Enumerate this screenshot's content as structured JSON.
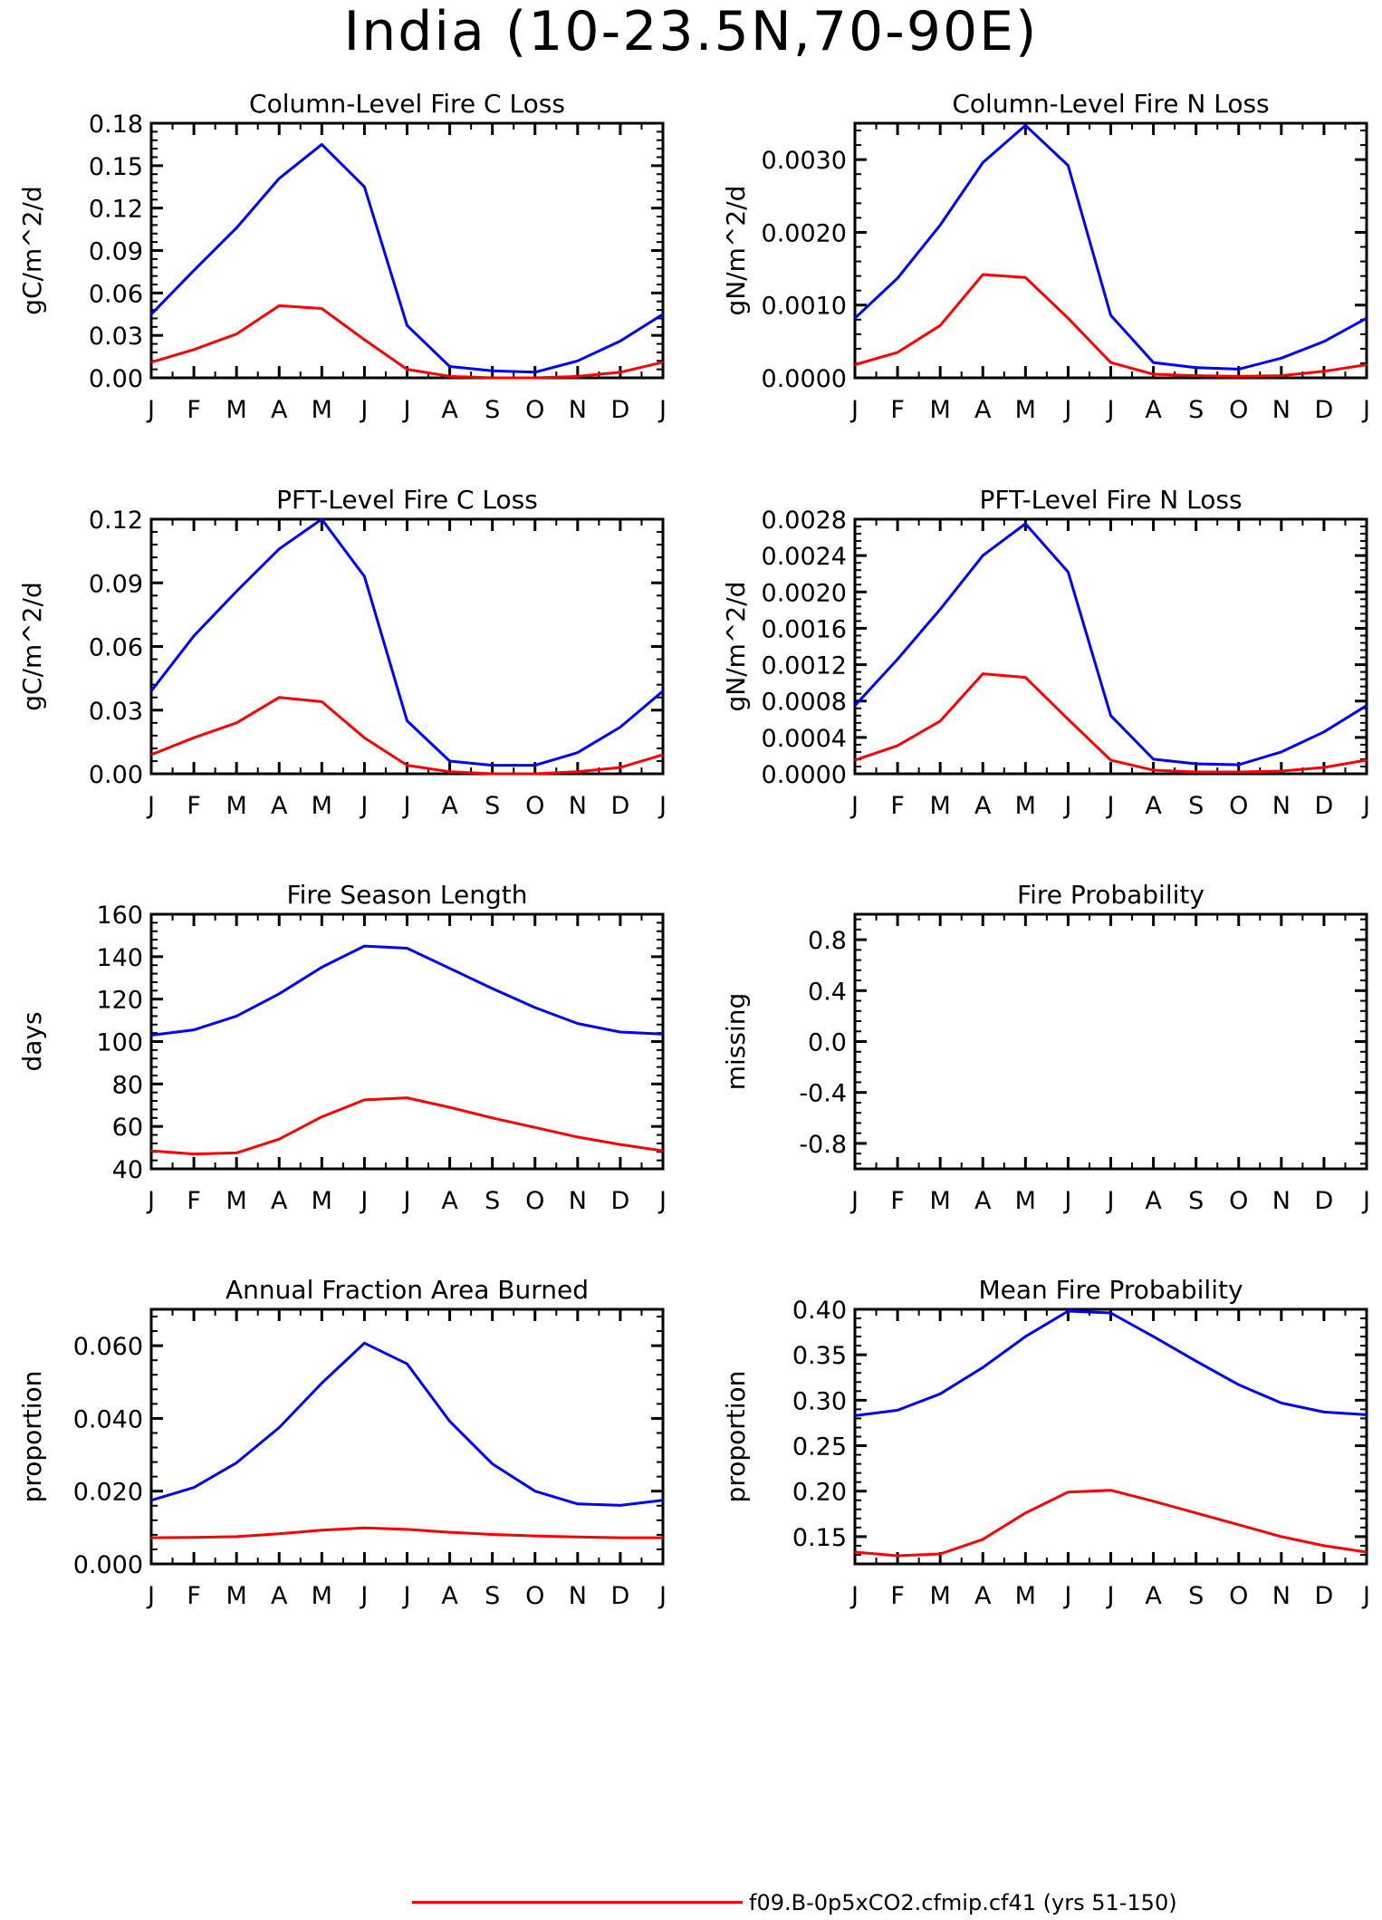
{
  "page_title": "India (10-23.5N,70-90E)",
  "colors": {
    "case_a": "#0000ff",
    "case_b": "#ff0000",
    "axis": "#000000"
  },
  "legend": {
    "visible_entries": [
      {
        "label": "f09.B-0p5xCO2.cfmip.cf41 (yrs 51-150)",
        "color": "#ff0000"
      }
    ]
  },
  "chart_data": [
    {
      "type": "line",
      "title": "Column-Level Fire C Loss",
      "ylabel": "gC/m^2/d",
      "categories": [
        "J",
        "F",
        "M",
        "A",
        "M",
        "J",
        "J",
        "A",
        "S",
        "O",
        "N",
        "D",
        "J"
      ],
      "ylim": [
        0,
        0.18
      ],
      "yticks": [
        0.0,
        0.03,
        0.06,
        0.09,
        0.12,
        0.15,
        0.18
      ],
      "ytick_labels": [
        "0.00",
        "0.03",
        "0.06",
        "0.09",
        "0.12",
        "0.15",
        "0.18"
      ],
      "series": [
        {
          "color": "#0000ff",
          "values": [
            0.045,
            0.076,
            0.106,
            0.141,
            0.165,
            0.135,
            0.037,
            0.008,
            0.005,
            0.004,
            0.012,
            0.026,
            0.045
          ]
        },
        {
          "color": "#ff0000",
          "values": [
            0.011,
            0.02,
            0.031,
            0.051,
            0.049,
            0.027,
            0.006,
            0.001,
            0.0,
            0.0,
            0.001,
            0.004,
            0.011
          ]
        }
      ]
    },
    {
      "type": "line",
      "title": "Column-Level Fire N Loss",
      "ylabel": "gN/m^2/d",
      "categories": [
        "J",
        "F",
        "M",
        "A",
        "M",
        "J",
        "J",
        "A",
        "S",
        "O",
        "N",
        "D",
        "J"
      ],
      "ylim": [
        0,
        0.0035
      ],
      "yticks": [
        0.0,
        0.001,
        0.002,
        0.003
      ],
      "ytick_labels": [
        "0.0000",
        "0.0010",
        "0.0020",
        "0.0030"
      ],
      "series": [
        {
          "color": "#0000ff",
          "values": [
            0.00082,
            0.00137,
            0.0021,
            0.00296,
            0.00347,
            0.00292,
            0.00086,
            0.00021,
            0.00014,
            0.00012,
            0.00027,
            0.0005,
            0.00082
          ]
        },
        {
          "color": "#ff0000",
          "values": [
            0.00018,
            0.00035,
            0.00072,
            0.00142,
            0.00138,
            0.00082,
            0.00021,
            5e-05,
            3e-05,
            2e-05,
            3e-05,
            9e-05,
            0.00018
          ]
        }
      ]
    },
    {
      "type": "line",
      "title": "PFT-Level Fire C Loss",
      "ylabel": "gC/m^2/d",
      "categories": [
        "J",
        "F",
        "M",
        "A",
        "M",
        "J",
        "J",
        "A",
        "S",
        "O",
        "N",
        "D",
        "J"
      ],
      "ylim": [
        0,
        0.12
      ],
      "yticks": [
        0.0,
        0.03,
        0.06,
        0.09,
        0.12
      ],
      "ytick_labels": [
        "0.00",
        "0.03",
        "0.06",
        "0.09",
        "0.12"
      ],
      "series": [
        {
          "color": "#0000ff",
          "values": [
            0.039,
            0.065,
            0.086,
            0.106,
            0.12,
            0.093,
            0.025,
            0.006,
            0.004,
            0.004,
            0.01,
            0.022,
            0.039
          ]
        },
        {
          "color": "#ff0000",
          "values": [
            0.009,
            0.017,
            0.024,
            0.036,
            0.034,
            0.017,
            0.004,
            0.001,
            0.0,
            0.0,
            0.001,
            0.003,
            0.009
          ]
        }
      ]
    },
    {
      "type": "line",
      "title": "PFT-Level Fire N Loss",
      "ylabel": "gN/m^2/d",
      "categories": [
        "J",
        "F",
        "M",
        "A",
        "M",
        "J",
        "J",
        "A",
        "S",
        "O",
        "N",
        "D",
        "J"
      ],
      "ylim": [
        0,
        0.0028
      ],
      "yticks": [
        0.0,
        0.0004,
        0.0008,
        0.0012,
        0.0016,
        0.002,
        0.0024,
        0.0028
      ],
      "ytick_labels": [
        "0.0000",
        "0.0004",
        "0.0008",
        "0.0012",
        "0.0016",
        "0.0020",
        "0.0024",
        "0.0028"
      ],
      "series": [
        {
          "color": "#0000ff",
          "values": [
            0.00075,
            0.00126,
            0.00181,
            0.0024,
            0.00275,
            0.00222,
            0.00064,
            0.00016,
            0.00011,
            0.0001,
            0.00024,
            0.00046,
            0.00075
          ]
        },
        {
          "color": "#ff0000",
          "values": [
            0.00015,
            0.00031,
            0.00058,
            0.0011,
            0.00106,
            0.0006,
            0.00015,
            4e-05,
            2e-05,
            2e-05,
            3e-05,
            7e-05,
            0.00015
          ]
        }
      ]
    },
    {
      "type": "line",
      "title": "Fire Season Length",
      "ylabel": "days",
      "categories": [
        "J",
        "F",
        "M",
        "A",
        "M",
        "J",
        "J",
        "A",
        "S",
        "O",
        "N",
        "D",
        "J"
      ],
      "ylim": [
        40,
        160
      ],
      "yticks": [
        40,
        60,
        80,
        100,
        120,
        140,
        160
      ],
      "ytick_labels": [
        "40",
        "60",
        "80",
        "100",
        "120",
        "140",
        "160"
      ],
      "series": [
        {
          "color": "#0000ff",
          "values": [
            103,
            105.5,
            112,
            122.5,
            135,
            145,
            144,
            134.5,
            125,
            116,
            108.5,
            104.5,
            103.5
          ]
        },
        {
          "color": "#ff0000",
          "values": [
            48.5,
            47,
            47.5,
            54,
            64.5,
            72.5,
            73.5,
            69,
            64,
            59.5,
            55,
            51.5,
            48.5
          ]
        }
      ]
    },
    {
      "type": "line",
      "title": "Fire Probability",
      "ylabel": "missing",
      "categories": [
        "J",
        "F",
        "M",
        "A",
        "M",
        "J",
        "J",
        "A",
        "S",
        "O",
        "N",
        "D",
        "J"
      ],
      "ylim": [
        -1,
        1
      ],
      "yticks": [
        -0.8,
        -0.4,
        0.0,
        0.4,
        0.8
      ],
      "ytick_labels": [
        "-0.8",
        "-0.4",
        "0.0",
        "0.4",
        "0.8"
      ],
      "series": []
    },
    {
      "type": "line",
      "title": "Annual Fraction Area Burned",
      "ylabel": "proportion",
      "categories": [
        "J",
        "F",
        "M",
        "A",
        "M",
        "J",
        "J",
        "A",
        "S",
        "O",
        "N",
        "D",
        "J"
      ],
      "ylim": [
        0,
        0.07
      ],
      "yticks": [
        0.0,
        0.02,
        0.04,
        0.06
      ],
      "ytick_labels": [
        "0.000",
        "0.020",
        "0.040",
        "0.060"
      ],
      "series": [
        {
          "color": "#0000ff",
          "values": [
            0.0175,
            0.021,
            0.0278,
            0.0375,
            0.0497,
            0.0607,
            0.055,
            0.0392,
            0.0275,
            0.02,
            0.0165,
            0.0161,
            0.0175
          ]
        },
        {
          "color": "#ff0000",
          "values": [
            0.0072,
            0.0073,
            0.0075,
            0.0083,
            0.0093,
            0.0099,
            0.0095,
            0.0087,
            0.0081,
            0.0077,
            0.0074,
            0.0072,
            0.0072
          ]
        }
      ]
    },
    {
      "type": "line",
      "title": "Mean Fire Probability",
      "ylabel": "proportion",
      "categories": [
        "J",
        "F",
        "M",
        "A",
        "M",
        "J",
        "J",
        "A",
        "S",
        "O",
        "N",
        "D",
        "J"
      ],
      "ylim": [
        0.12,
        0.4
      ],
      "yticks": [
        0.15,
        0.2,
        0.25,
        0.3,
        0.35,
        0.4
      ],
      "ytick_labels": [
        "0.15",
        "0.20",
        "0.25",
        "0.30",
        "0.35",
        "0.40"
      ],
      "series": [
        {
          "color": "#0000ff",
          "values": [
            0.283,
            0.289,
            0.307,
            0.336,
            0.37,
            0.398,
            0.396,
            0.37,
            0.343,
            0.317,
            0.297,
            0.287,
            0.284
          ]
        },
        {
          "color": "#ff0000",
          "values": [
            0.133,
            0.129,
            0.131,
            0.147,
            0.176,
            0.199,
            0.201,
            0.189,
            0.176,
            0.163,
            0.15,
            0.14,
            0.133
          ]
        }
      ]
    }
  ]
}
